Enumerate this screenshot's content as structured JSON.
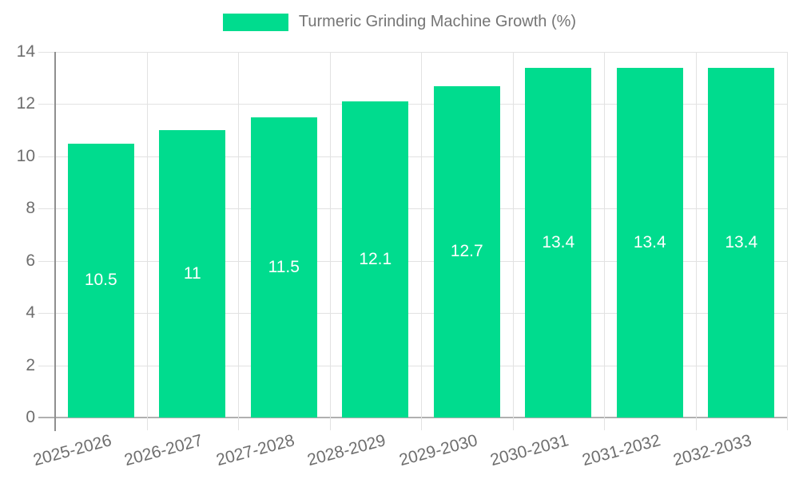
{
  "legend": {
    "label": "Turmeric Grinding Machine Growth (%)",
    "swatch_color": "#00dc8e"
  },
  "chart_data": {
    "type": "bar",
    "title": "Turmeric Grinding Machine Growth (%)",
    "series_name": "Turmeric Grinding Machine Growth (%)",
    "categories": [
      "2025-2026",
      "2026-2027",
      "2027-2028",
      "2028-2029",
      "2029-2030",
      "2030-2031",
      "2031-2032",
      "2032-2033"
    ],
    "values": [
      10.5,
      11,
      11.5,
      12.1,
      12.7,
      13.4,
      13.4,
      13.4
    ],
    "value_labels": [
      "10.5",
      "11",
      "11.5",
      "12.1",
      "12.7",
      "13.4",
      "13.4",
      "13.4"
    ],
    "xlabel": "",
    "ylabel": "",
    "ylim": [
      0,
      14
    ],
    "yticks": [
      0,
      2,
      4,
      6,
      8,
      10,
      12,
      14
    ],
    "grid": true,
    "legend_position": "top",
    "bar_color": "#00dc8e",
    "value_label_color": "#ffffff",
    "axis_text_color": "#6e6e6e",
    "gridline_color": "#e2e2e2",
    "x_label_rotation_deg": -15
  }
}
